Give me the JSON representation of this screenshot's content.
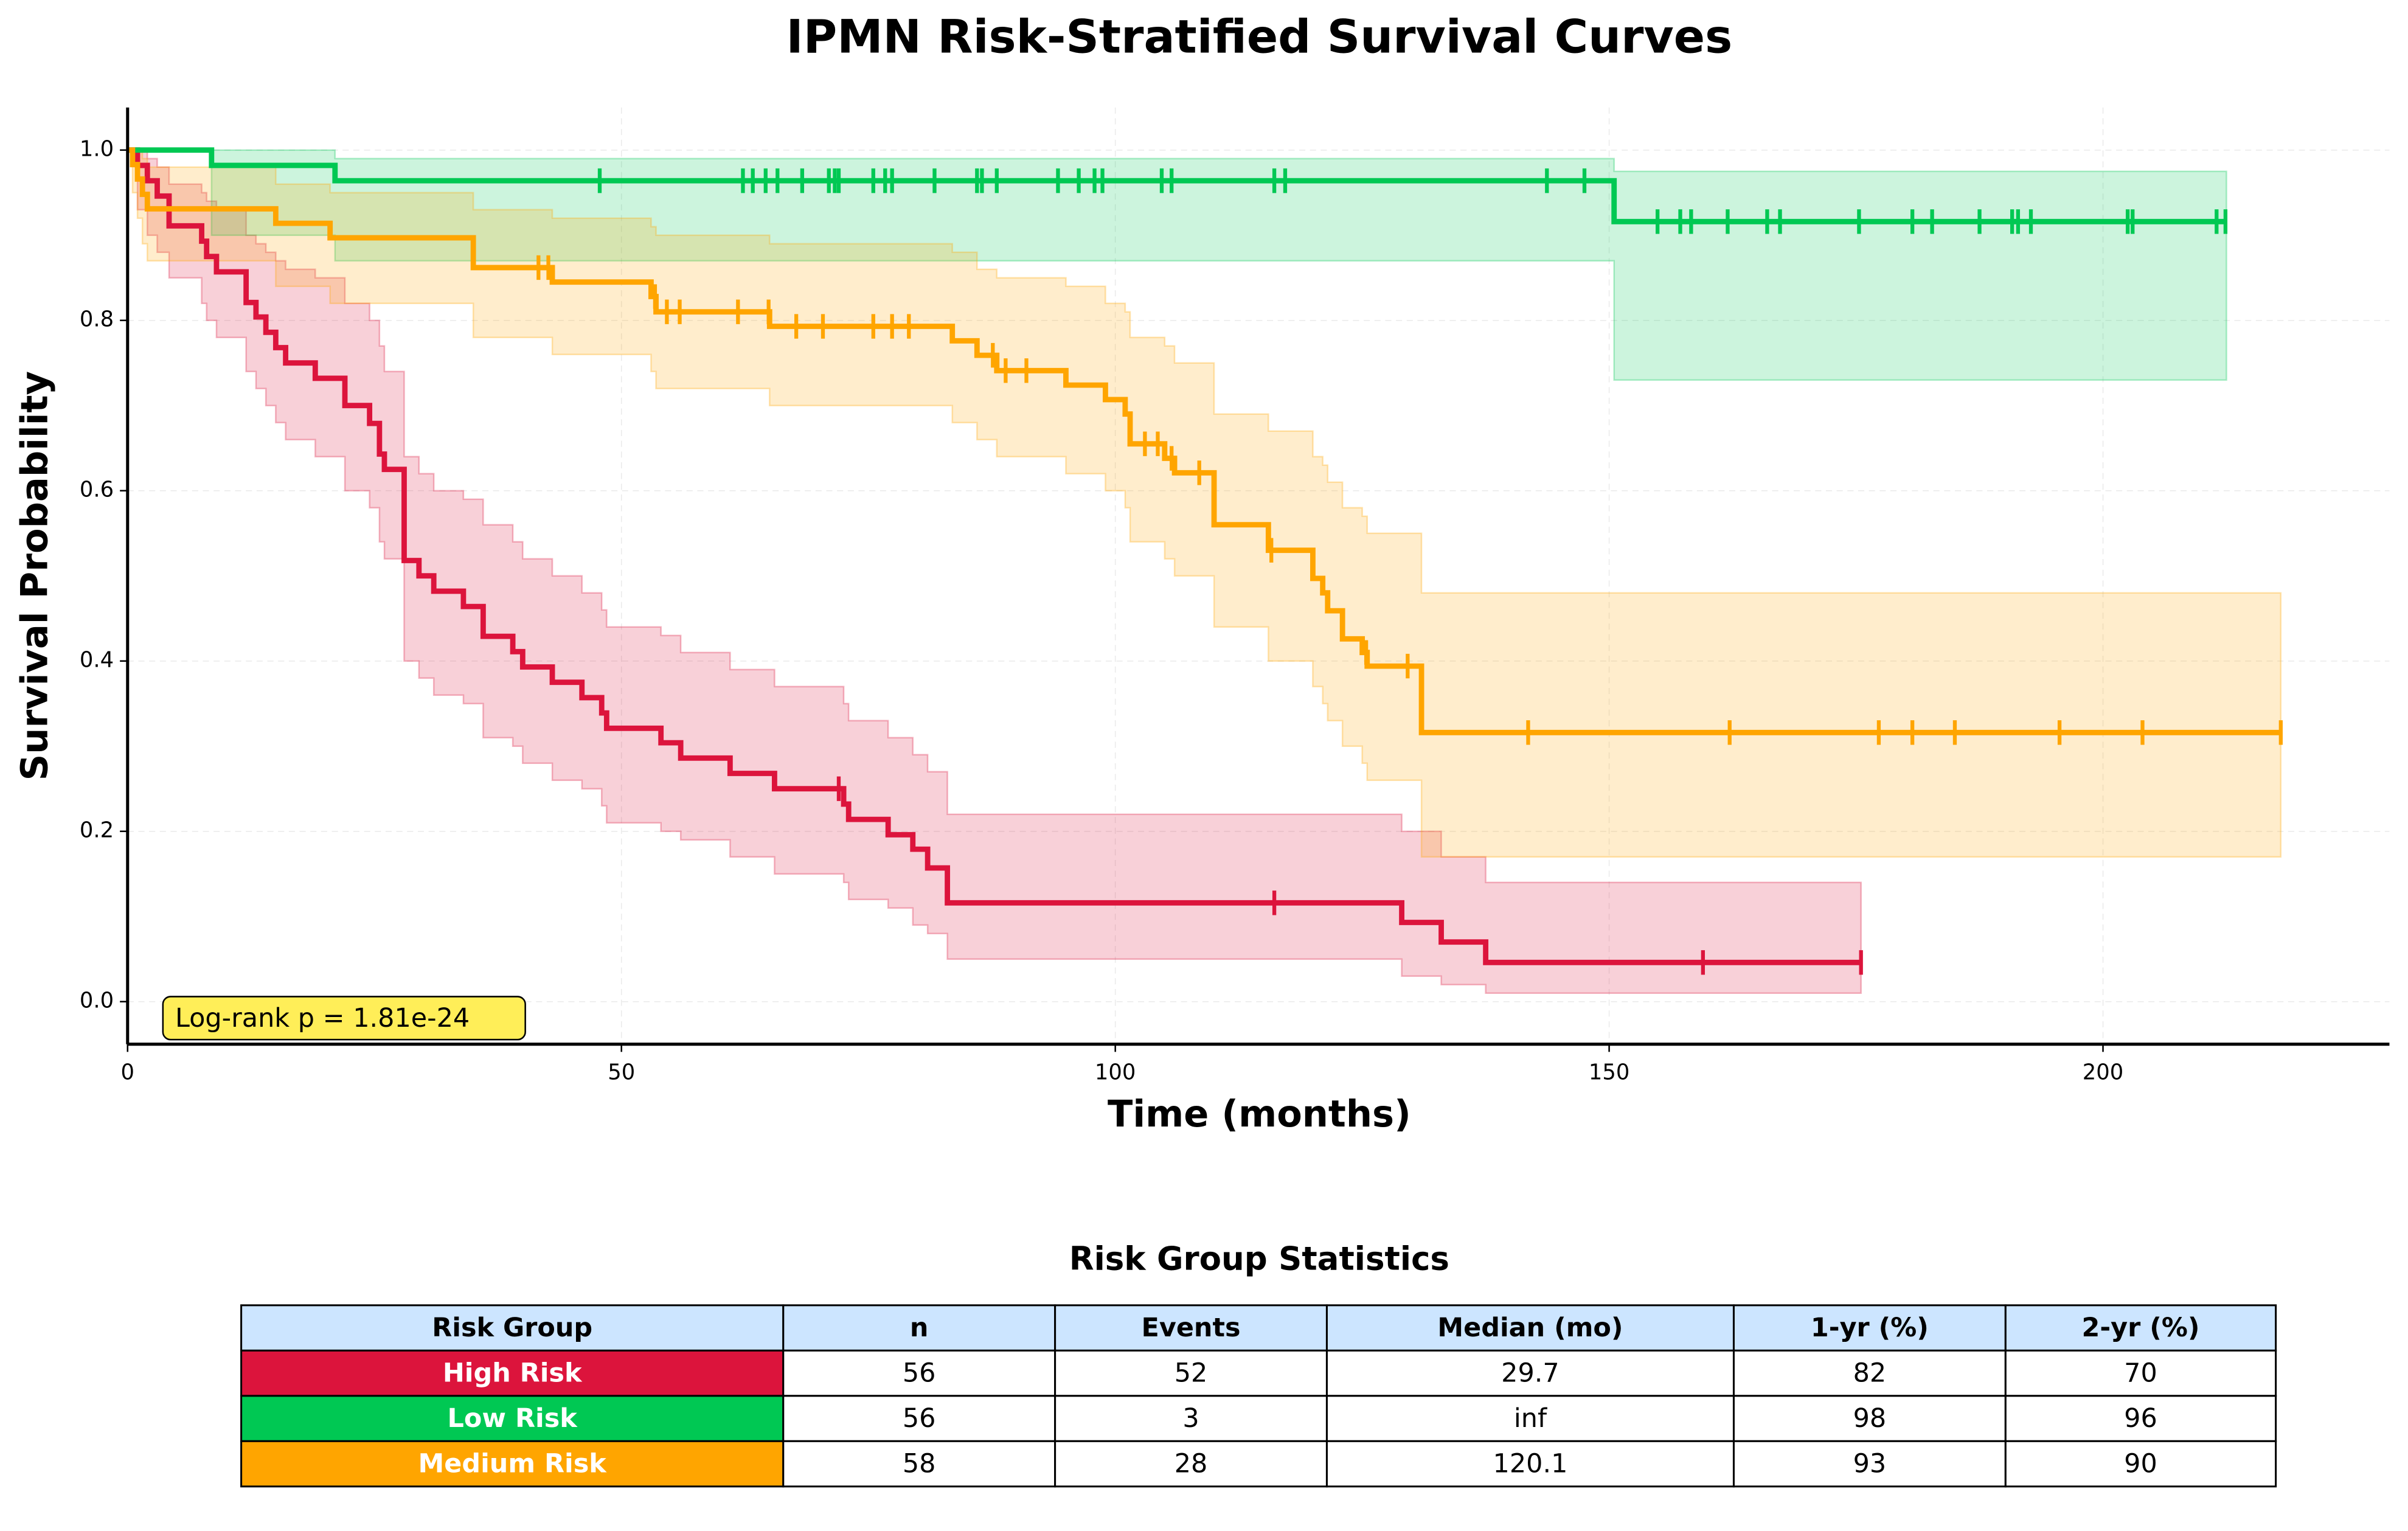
{
  "chart_data": {
    "type": "survival",
    "title": "IPMN Risk-Stratified Survival Curves",
    "xlabel": "Time (months)",
    "ylabel": "Survival Probability",
    "xlim": [
      0,
      229
    ],
    "ylim": [
      -0.05,
      1.05
    ],
    "xticks": [
      0,
      50,
      100,
      150,
      200
    ],
    "yticks": [
      {
        "value": 0,
        "label": "0.0"
      },
      {
        "value": 0.2,
        "label": "0.2"
      },
      {
        "value": 0.4,
        "label": "0.4"
      },
      {
        "value": 0.6,
        "label": "0.6"
      },
      {
        "value": 0.8,
        "label": "0.8"
      },
      {
        "value": 1,
        "label": "1.0"
      }
    ],
    "grid": true,
    "annotation": "Log-rank p = 1.81e-24",
    "series": [
      {
        "name": "High Risk",
        "color": "#dc143c",
        "x": [
          0,
          1,
          2,
          3,
          4.2,
          7.5,
          8,
          9,
          12,
          13,
          14,
          15,
          16,
          19,
          22,
          24.5,
          25.5,
          26,
          28,
          29.5,
          31,
          34,
          36,
          39,
          40,
          43,
          46,
          48,
          48.5,
          54,
          56,
          61,
          65.5,
          72.5,
          73,
          77,
          79.5,
          81,
          83,
          129,
          133,
          137.5,
          175.5
        ],
        "values": [
          1,
          0.982,
          0.964,
          0.946,
          0.911,
          0.893,
          0.875,
          0.857,
          0.821,
          0.804,
          0.786,
          0.768,
          0.75,
          0.732,
          0.7,
          0.679,
          0.643,
          0.625,
          0.518,
          0.5,
          0.482,
          0.464,
          0.429,
          0.411,
          0.393,
          0.375,
          0.357,
          0.339,
          0.321,
          0.304,
          0.286,
          0.268,
          0.25,
          0.232,
          0.214,
          0.196,
          0.179,
          0.157,
          0.116,
          0.093,
          0.07,
          0.046,
          0.046
        ],
        "ci_upper": [
          1,
          1,
          0.99,
          0.98,
          0.96,
          0.95,
          0.94,
          0.93,
          0.9,
          0.89,
          0.88,
          0.87,
          0.86,
          0.85,
          0.82,
          0.8,
          0.77,
          0.74,
          0.64,
          0.62,
          0.6,
          0.59,
          0.56,
          0.54,
          0.52,
          0.5,
          0.48,
          0.46,
          0.44,
          0.43,
          0.41,
          0.39,
          0.37,
          0.35,
          0.33,
          0.31,
          0.29,
          0.27,
          0.22,
          0.2,
          0.17,
          0.14,
          0.14
        ],
        "ci_lower": [
          1,
          0.93,
          0.9,
          0.88,
          0.85,
          0.82,
          0.8,
          0.78,
          0.74,
          0.72,
          0.7,
          0.68,
          0.66,
          0.64,
          0.6,
          0.58,
          0.54,
          0.52,
          0.4,
          0.38,
          0.36,
          0.35,
          0.31,
          0.3,
          0.28,
          0.26,
          0.25,
          0.23,
          0.21,
          0.2,
          0.19,
          0.17,
          0.15,
          0.14,
          0.12,
          0.11,
          0.09,
          0.08,
          0.05,
          0.03,
          0.02,
          0.01,
          0.01
        ],
        "censored": [
          72,
          116.1,
          159.5,
          175.5
        ]
      },
      {
        "name": "Low Risk",
        "color": "#00c853",
        "x": [
          0,
          8.5,
          21,
          150.5,
          212.5
        ],
        "values": [
          1,
          0.982,
          0.964,
          0.916,
          0.916
        ],
        "ci_upper": [
          1,
          1,
          0.99,
          0.975,
          0.975
        ],
        "ci_lower": [
          1,
          0.9,
          0.87,
          0.73,
          0.73
        ],
        "censored": [
          47.8,
          62.3,
          63.3,
          64.6,
          65.8,
          68.3,
          71,
          71.6,
          72,
          75.5,
          76.7,
          77.4,
          81.7,
          86,
          86.5,
          88,
          94.2,
          96.3,
          97.9,
          98.7,
          104.7,
          105.7,
          116.1,
          117.2,
          143.7,
          147.5,
          154.9,
          157.2,
          158.3,
          162,
          166,
          167.3,
          175.3,
          180.7,
          182.7,
          187.5,
          190.8,
          191.4,
          192.7,
          202.5,
          203,
          211.5,
          212.4
        ]
      },
      {
        "name": "Medium Risk",
        "color": "#ffa500",
        "x": [
          0,
          0.5,
          1,
          1.5,
          2,
          15,
          20.5,
          35,
          43,
          53,
          53.5,
          65,
          83.5,
          86,
          88,
          95,
          99,
          101,
          101.5,
          105,
          106,
          110,
          115.5,
          120,
          121,
          121.5,
          123,
          125,
          125.5,
          131,
          218
        ],
        "values": [
          1,
          0.983,
          0.966,
          0.948,
          0.931,
          0.914,
          0.897,
          0.862,
          0.845,
          0.828,
          0.81,
          0.793,
          0.776,
          0.759,
          0.741,
          0.724,
          0.707,
          0.69,
          0.655,
          0.638,
          0.621,
          0.56,
          0.53,
          0.497,
          0.48,
          0.459,
          0.426,
          0.41,
          0.394,
          0.316,
          0.316
        ],
        "ci_upper": [
          1,
          1,
          1,
          0.99,
          0.98,
          0.96,
          0.95,
          0.93,
          0.92,
          0.91,
          0.9,
          0.89,
          0.88,
          0.86,
          0.85,
          0.84,
          0.82,
          0.81,
          0.78,
          0.77,
          0.75,
          0.69,
          0.67,
          0.64,
          0.63,
          0.61,
          0.58,
          0.57,
          0.55,
          0.48,
          0.48
        ],
        "ci_lower": [
          1,
          0.95,
          0.92,
          0.89,
          0.87,
          0.84,
          0.82,
          0.78,
          0.76,
          0.74,
          0.72,
          0.7,
          0.68,
          0.66,
          0.64,
          0.62,
          0.6,
          0.58,
          0.54,
          0.52,
          0.5,
          0.44,
          0.4,
          0.37,
          0.35,
          0.33,
          0.3,
          0.28,
          0.26,
          0.17,
          0.17
        ],
        "censored": [
          41.6,
          42.6,
          53.4,
          54.6,
          55.9,
          61.8,
          64.9,
          67.7,
          70.4,
          75.5,
          77.4,
          79.1,
          87.6,
          88.9,
          91,
          103,
          104.3,
          105.7,
          108.5,
          115.8,
          125.4,
          129.6,
          141.8,
          162.2,
          177.3,
          180.7,
          185,
          195.6,
          204,
          218
        ]
      }
    ]
  },
  "table": {
    "title": "Risk Group Statistics",
    "columns": [
      "Risk Group",
      "n",
      "Events",
      "Median (mo)",
      "1-yr (%)",
      "2-yr (%)"
    ],
    "header_color": "#cce5ff",
    "rows": [
      [
        "High Risk",
        "56",
        "52",
        "29.7",
        "82",
        "70"
      ],
      [
        "Low Risk",
        "56",
        "3",
        "inf",
        "98",
        "96"
      ],
      [
        "Medium Risk",
        "58",
        "28",
        "120.1",
        "93",
        "90"
      ]
    ],
    "row_colors": [
      "#dc143c",
      "#00c853",
      "#ffa500"
    ]
  }
}
